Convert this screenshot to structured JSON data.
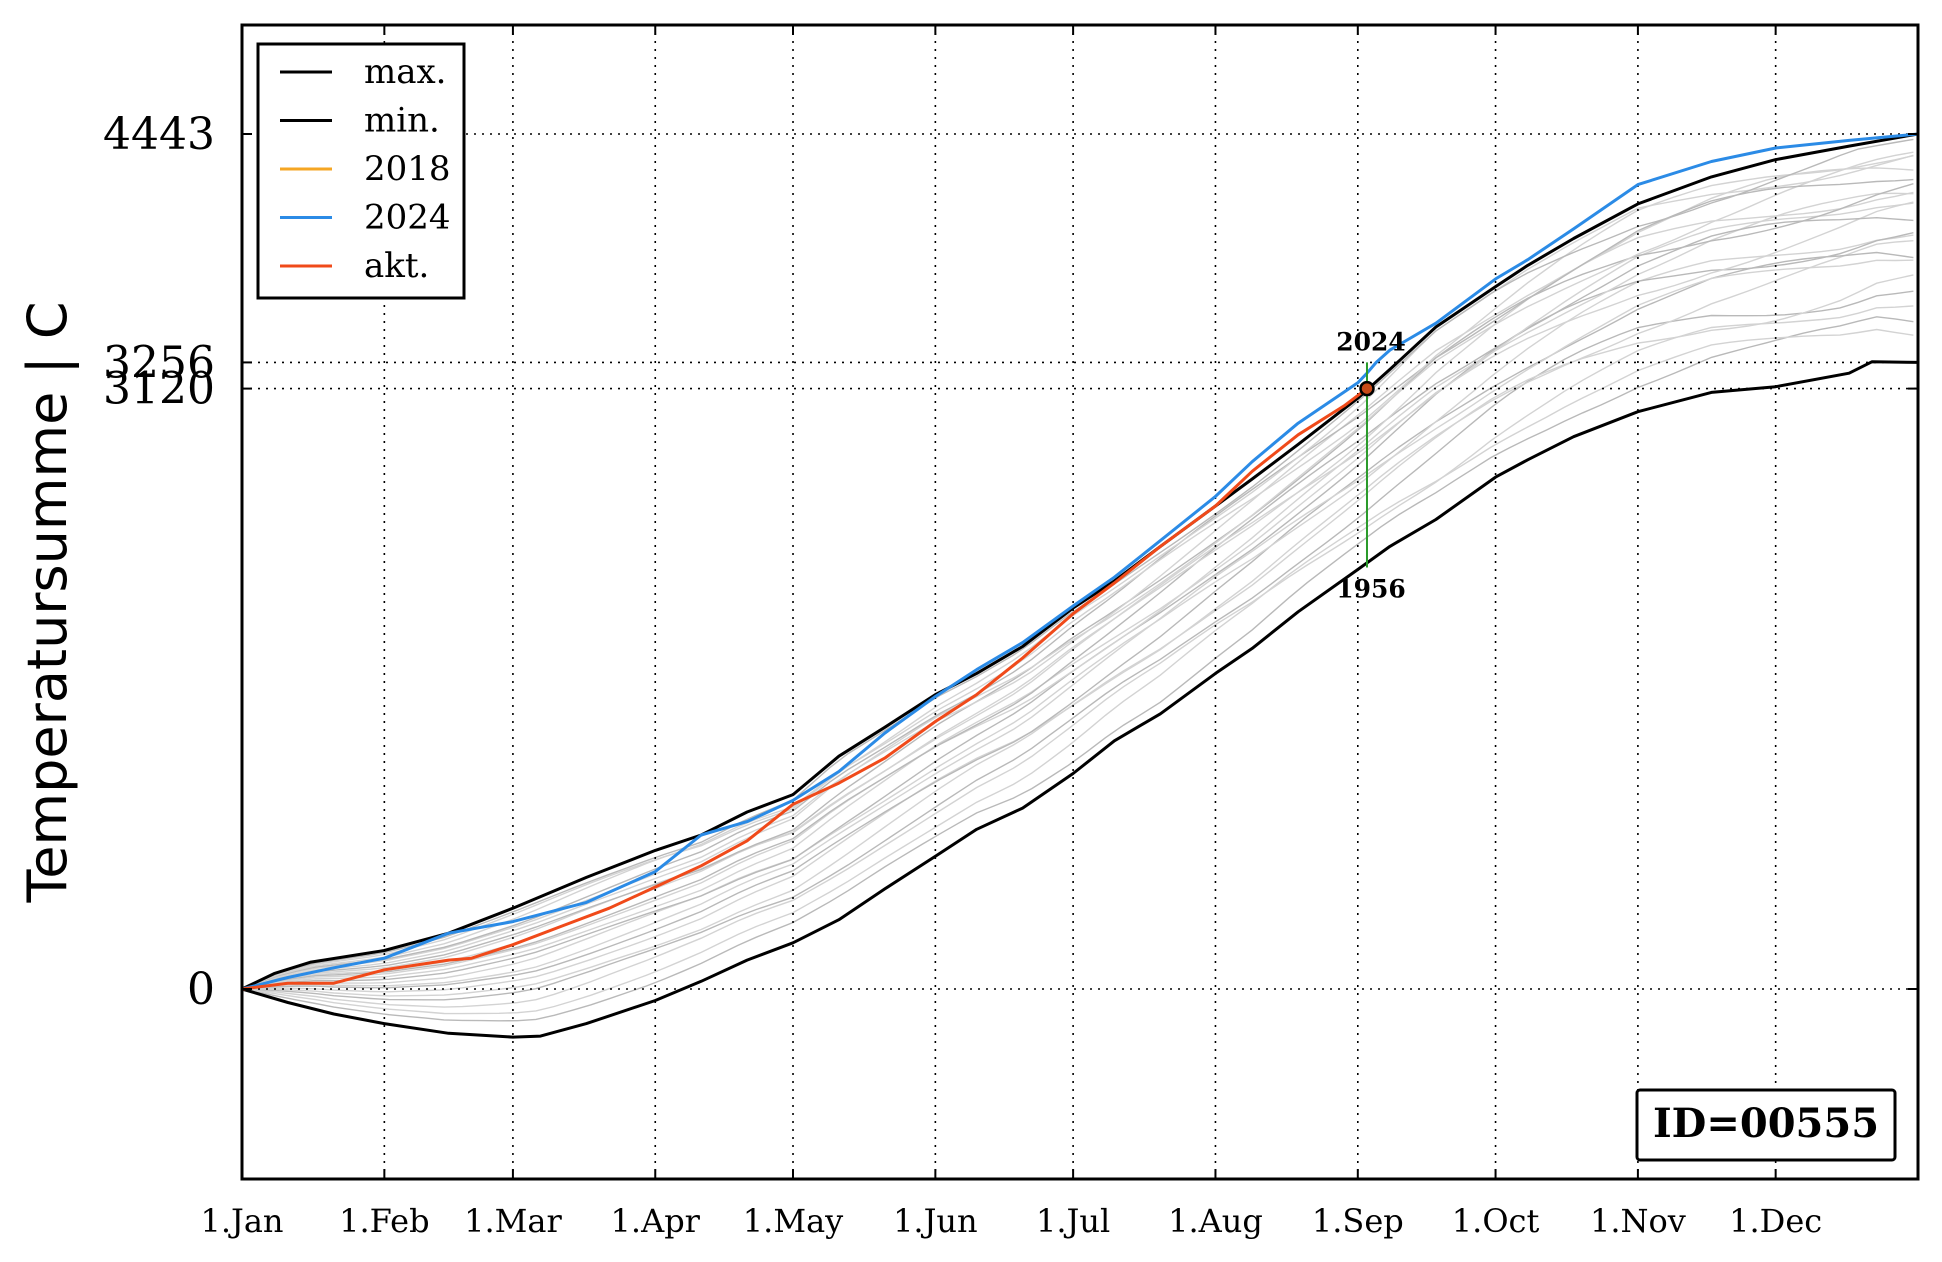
{
  "chart_data": {
    "type": "line",
    "ylabel": "Temperatursumme | C",
    "x_tick_labels": [
      "1.Jan",
      "1.Feb",
      "1.Mar",
      "1.Apr",
      "1.May",
      "1.Jun",
      "1.Jul",
      "1.Aug",
      "1.Sep",
      "1.Oct",
      "1.Nov",
      "1.Dec"
    ],
    "x_tick_days": [
      0,
      31,
      59,
      90,
      120,
      151,
      181,
      212,
      243,
      273,
      304,
      334
    ],
    "xlim": [
      0,
      365
    ],
    "y_tick_labels": [
      "0",
      "3120",
      "3256",
      "4443"
    ],
    "y_tick_values": [
      0,
      3120,
      3256,
      4443
    ],
    "ylim": [
      -1000,
      5600
    ],
    "grid": "dotted",
    "legend_position": "top-left",
    "id_label": "ID=00555",
    "annotations": {
      "current_point": {
        "day": 245,
        "value": 3120
      },
      "upper_label": "2024",
      "upper_value": 3256,
      "lower_label": "1956",
      "lower_value": 2190
    },
    "series": [
      {
        "name": "max.",
        "color": "#000000",
        "points": [
          [
            0,
            0
          ],
          [
            7,
            80
          ],
          [
            15,
            140
          ],
          [
            31,
            200
          ],
          [
            45,
            290
          ],
          [
            59,
            420
          ],
          [
            75,
            580
          ],
          [
            90,
            720
          ],
          [
            100,
            800
          ],
          [
            110,
            920
          ],
          [
            120,
            1010
          ],
          [
            130,
            1210
          ],
          [
            140,
            1360
          ],
          [
            151,
            1530
          ],
          [
            160,
            1640
          ],
          [
            170,
            1780
          ],
          [
            181,
            1980
          ],
          [
            190,
            2120
          ],
          [
            200,
            2300
          ],
          [
            212,
            2510
          ],
          [
            220,
            2650
          ],
          [
            230,
            2830
          ],
          [
            243,
            3070
          ],
          [
            250,
            3220
          ],
          [
            260,
            3440
          ],
          [
            273,
            3650
          ],
          [
            280,
            3760
          ],
          [
            290,
            3900
          ],
          [
            304,
            4080
          ],
          [
            320,
            4220
          ],
          [
            334,
            4310
          ],
          [
            350,
            4380
          ],
          [
            365,
            4443
          ]
        ]
      },
      {
        "name": "min.",
        "color": "#000000",
        "points": [
          [
            0,
            0
          ],
          [
            10,
            -70
          ],
          [
            20,
            -130
          ],
          [
            31,
            -180
          ],
          [
            45,
            -230
          ],
          [
            59,
            -250
          ],
          [
            65,
            -245
          ],
          [
            75,
            -180
          ],
          [
            90,
            -60
          ],
          [
            100,
            40
          ],
          [
            110,
            150
          ],
          [
            120,
            240
          ],
          [
            130,
            360
          ],
          [
            140,
            520
          ],
          [
            151,
            690
          ],
          [
            160,
            830
          ],
          [
            170,
            940
          ],
          [
            181,
            1120
          ],
          [
            190,
            1290
          ],
          [
            200,
            1430
          ],
          [
            212,
            1640
          ],
          [
            220,
            1770
          ],
          [
            230,
            1960
          ],
          [
            243,
            2180
          ],
          [
            250,
            2300
          ],
          [
            260,
            2440
          ],
          [
            273,
            2660
          ],
          [
            280,
            2750
          ],
          [
            290,
            2870
          ],
          [
            304,
            3000
          ],
          [
            320,
            3100
          ],
          [
            334,
            3130
          ],
          [
            350,
            3200
          ],
          [
            355,
            3260
          ],
          [
            365,
            3256
          ]
        ]
      },
      {
        "name": "2018",
        "color": "#f5a623",
        "points": [
          [
            0,
            0
          ],
          [
            31,
            130
          ],
          [
            59,
            270
          ],
          [
            90,
            510
          ],
          [
            120,
            850
          ],
          [
            151,
            1300
          ],
          [
            181,
            1780
          ],
          [
            212,
            2320
          ],
          [
            243,
            2860
          ],
          [
            273,
            3320
          ],
          [
            304,
            3720
          ],
          [
            334,
            4050
          ],
          [
            365,
            4330
          ]
        ]
      },
      {
        "name": "2024",
        "color": "#2b8be6",
        "points": [
          [
            0,
            0
          ],
          [
            10,
            60
          ],
          [
            20,
            110
          ],
          [
            31,
            160
          ],
          [
            45,
            290
          ],
          [
            59,
            350
          ],
          [
            75,
            450
          ],
          [
            90,
            610
          ],
          [
            100,
            800
          ],
          [
            110,
            870
          ],
          [
            120,
            980
          ],
          [
            130,
            1130
          ],
          [
            140,
            1330
          ],
          [
            151,
            1520
          ],
          [
            160,
            1660
          ],
          [
            170,
            1800
          ],
          [
            181,
            1990
          ],
          [
            190,
            2140
          ],
          [
            200,
            2330
          ],
          [
            212,
            2560
          ],
          [
            220,
            2740
          ],
          [
            230,
            2940
          ],
          [
            243,
            3150
          ],
          [
            245,
            3200
          ],
          [
            247,
            3256
          ],
          [
            250,
            3320
          ],
          [
            260,
            3460
          ],
          [
            273,
            3690
          ],
          [
            280,
            3790
          ],
          [
            290,
            3950
          ],
          [
            304,
            4180
          ],
          [
            320,
            4300
          ],
          [
            334,
            4370
          ],
          [
            350,
            4410
          ],
          [
            365,
            4443
          ]
        ]
      },
      {
        "name": "akt.",
        "color": "#f04a1a",
        "points": [
          [
            0,
            0
          ],
          [
            10,
            30
          ],
          [
            20,
            30
          ],
          [
            31,
            100
          ],
          [
            45,
            150
          ],
          [
            50,
            160
          ],
          [
            59,
            230
          ],
          [
            70,
            330
          ],
          [
            80,
            420
          ],
          [
            90,
            530
          ],
          [
            100,
            640
          ],
          [
            110,
            770
          ],
          [
            120,
            960
          ],
          [
            130,
            1070
          ],
          [
            140,
            1200
          ],
          [
            151,
            1390
          ],
          [
            160,
            1530
          ],
          [
            170,
            1720
          ],
          [
            181,
            1950
          ],
          [
            190,
            2110
          ],
          [
            200,
            2300
          ],
          [
            212,
            2510
          ],
          [
            220,
            2690
          ],
          [
            230,
            2880
          ],
          [
            240,
            3030
          ],
          [
            245,
            3120
          ]
        ]
      }
    ]
  }
}
